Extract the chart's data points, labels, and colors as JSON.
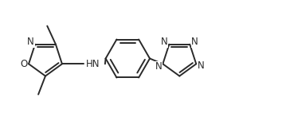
{
  "background_color": "#ffffff",
  "line_color": "#2a2a2a",
  "text_color": "#2a2a2a",
  "bond_lw": 1.4,
  "font_size": 8.5,
  "figsize": [
    3.59,
    1.47
  ],
  "dpi": 100,
  "xlim": [
    0,
    10
  ],
  "ylim": [
    0,
    4.1
  ]
}
